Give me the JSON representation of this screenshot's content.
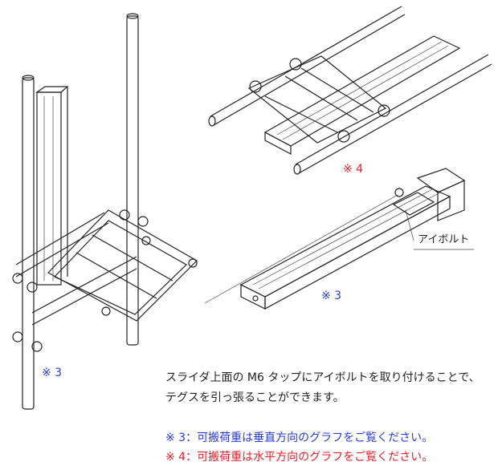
{
  "labels": {
    "note_top_right": "※ 4",
    "eye_bolt": "アイボルト",
    "note_middle_right": "※ 3",
    "note_left": "※ 3"
  },
  "description": [
    "スライダ上面の M6 タップにアイボルトを取り付けることで、",
    "テグスを引っ張ることができます。"
  ],
  "notes": [
    "※ 3：可搬荷重は垂直方向のグラフをご覧ください。",
    "※ 4：可搬荷重は水平方向のグラフをご覧ください。"
  ]
}
